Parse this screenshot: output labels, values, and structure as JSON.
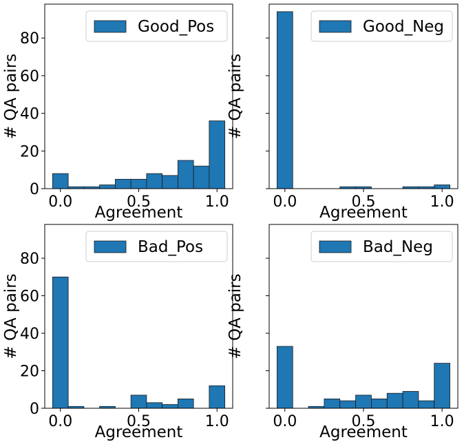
{
  "chart_data": [
    {
      "type": "bar",
      "legend": "Good_Pos",
      "legend_position": "top-right",
      "xlabel": "Agreement",
      "ylabel": "# QA pairs",
      "xticks": [
        "0.0",
        "0.5",
        "1.0"
      ],
      "yticks": [
        "0",
        "20",
        "40",
        "60",
        "80"
      ],
      "show_ytick_labels": true,
      "ylim": [
        0,
        98
      ],
      "bin_edges": [
        -0.05,
        0.05,
        0.15,
        0.25,
        0.35,
        0.45,
        0.55,
        0.65,
        0.75,
        0.85,
        0.95,
        1.05
      ],
      "values": [
        8,
        1,
        1,
        2,
        5,
        5,
        8,
        7,
        15,
        12,
        36
      ]
    },
    {
      "type": "bar",
      "legend": "Good_Neg",
      "legend_position": "top-right",
      "xlabel": "Agreement",
      "ylabel": "# QA pairs",
      "xticks": [
        "0.0",
        "0.5",
        "1.0"
      ],
      "yticks": [
        "0",
        "20",
        "40",
        "60",
        "80"
      ],
      "show_ytick_labels": false,
      "ylim": [
        0,
        98
      ],
      "bin_edges": [
        -0.05,
        0.05,
        0.15,
        0.25,
        0.35,
        0.45,
        0.55,
        0.65,
        0.75,
        0.85,
        0.95,
        1.05
      ],
      "values": [
        94,
        0,
        0,
        0,
        1,
        1,
        0,
        0,
        1,
        1,
        2
      ]
    },
    {
      "type": "bar",
      "legend": "Bad_Pos",
      "legend_position": "top-right",
      "xlabel": "Agreement",
      "ylabel": "# QA pairs",
      "xticks": [
        "0.0",
        "0.5",
        "1.0"
      ],
      "yticks": [
        "0",
        "20",
        "40",
        "60",
        "80"
      ],
      "show_ytick_labels": true,
      "ylim": [
        0,
        98
      ],
      "bin_edges": [
        -0.05,
        0.05,
        0.15,
        0.25,
        0.35,
        0.45,
        0.55,
        0.65,
        0.75,
        0.85,
        0.95,
        1.05
      ],
      "values": [
        70,
        1,
        0,
        1,
        0,
        7,
        3,
        2,
        5,
        0,
        12
      ]
    },
    {
      "type": "bar",
      "legend": "Bad_Neg",
      "legend_position": "top-right",
      "xlabel": "Agreement",
      "ylabel": "# QA pairs",
      "xticks": [
        "0.0",
        "0.5",
        "1.0"
      ],
      "yticks": [
        "0",
        "20",
        "40",
        "60",
        "80"
      ],
      "show_ytick_labels": false,
      "ylim": [
        0,
        98
      ],
      "bin_edges": [
        -0.05,
        0.05,
        0.15,
        0.25,
        0.35,
        0.45,
        0.55,
        0.65,
        0.75,
        0.85,
        0.95,
        1.05
      ],
      "values": [
        33,
        0,
        1,
        5,
        4,
        7,
        5,
        8,
        9,
        4,
        24
      ]
    }
  ],
  "colors": {
    "bar_fill": "#1f77b4",
    "bar_edge": "#1a1a1a",
    "axes": "#000000",
    "legend_border": "#cccccc"
  }
}
